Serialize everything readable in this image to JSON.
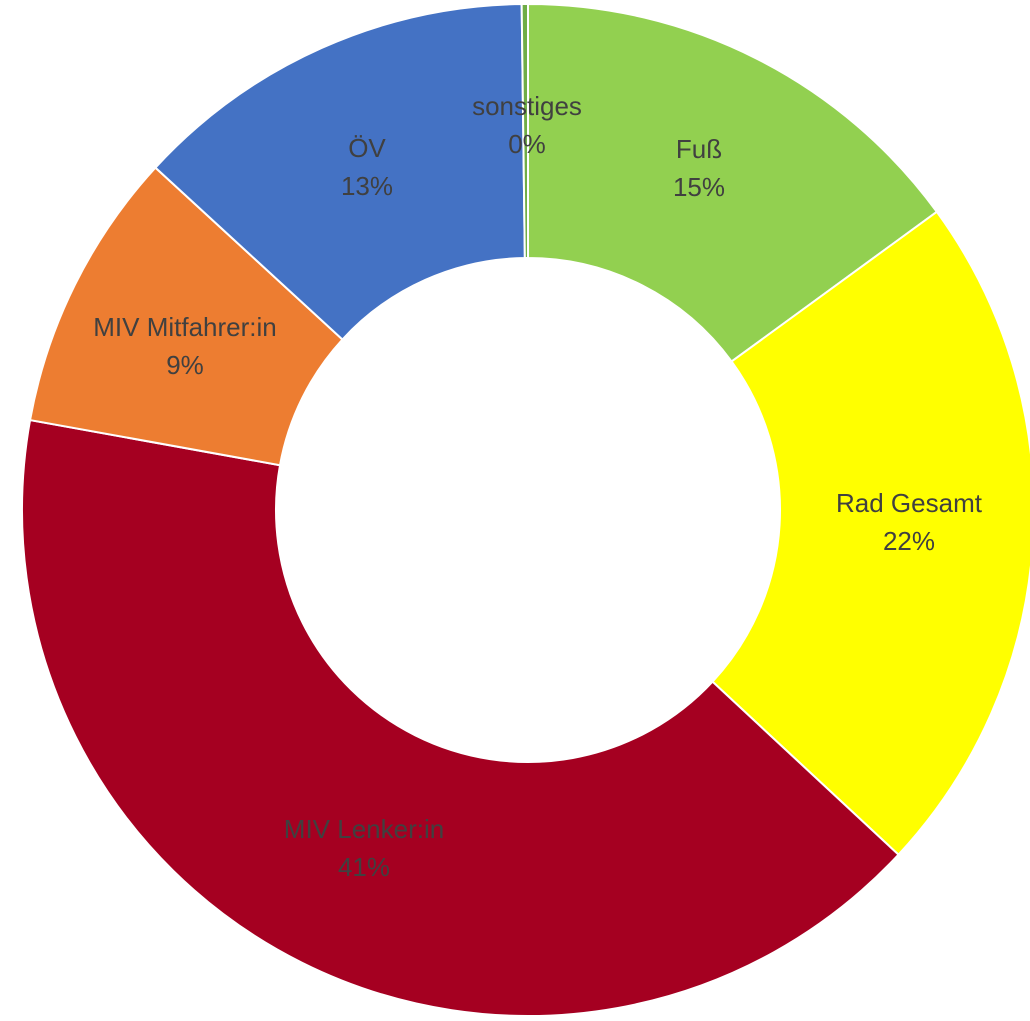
{
  "chart_data": {
    "type": "pie",
    "variant": "donut",
    "title": "",
    "start": "top",
    "direction": "clockwise",
    "legend": "none",
    "slices": [
      {
        "name": "Fuß",
        "value": 15,
        "label": "15%",
        "color": "#92D050"
      },
      {
        "name": "Rad Gesamt",
        "value": 22,
        "label": "22%",
        "color": "#FFFF00"
      },
      {
        "name": "MIV Lenker:in",
        "value": 41,
        "label": "41%",
        "color": "#A50021"
      },
      {
        "name": "MIV Mitfahrer:in",
        "value": 9,
        "label": "9%",
        "color": "#ED7D31"
      },
      {
        "name": "ÖV",
        "value": 13,
        "label": "13%",
        "color": "#4472C4"
      },
      {
        "name": "sonstiges",
        "value": 0.2,
        "label": "0%",
        "color": "#70AD47"
      }
    ]
  }
}
